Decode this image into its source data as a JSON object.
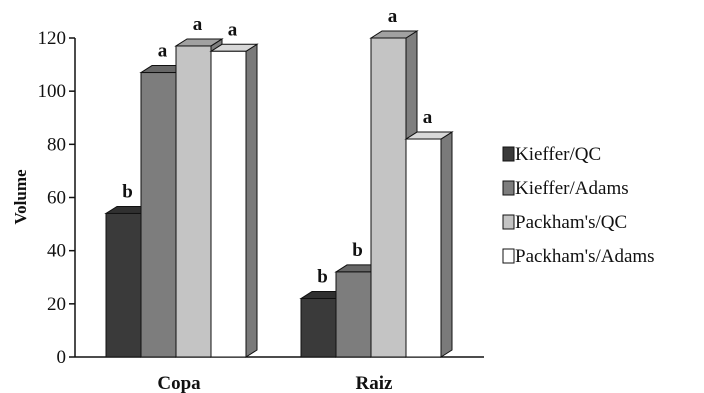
{
  "chart_data": {
    "type": "bar",
    "title": "",
    "xlabel": "",
    "ylabel": "Volume",
    "ylim": [
      0,
      120
    ],
    "yticks": [
      0,
      20,
      40,
      60,
      80,
      100,
      120
    ],
    "categories": [
      "Copa",
      "Raiz"
    ],
    "series": [
      {
        "name": "Kieffer/QC",
        "values": [
          54,
          22
        ],
        "letters": [
          "b",
          "b"
        ],
        "color": "#3a3a3a"
      },
      {
        "name": "Kieffer/Adams",
        "values": [
          107,
          32
        ],
        "letters": [
          "a",
          "b"
        ],
        "color": "#7d7d7d"
      },
      {
        "name": "Packham's/QC",
        "values": [
          117,
          120
        ],
        "letters": [
          "a",
          "a"
        ],
        "color": "#c4c4c4"
      },
      {
        "name": "Packham's/Adams",
        "values": [
          115,
          82
        ],
        "letters": [
          "a",
          "a"
        ],
        "color": "#ffffff"
      }
    ],
    "grid": false,
    "legend_position": "right",
    "style": "3d-bars"
  }
}
